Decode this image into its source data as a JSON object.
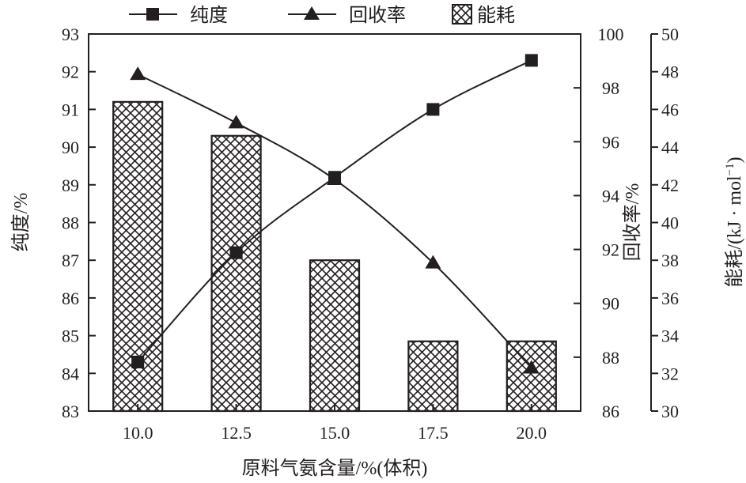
{
  "chart_data": {
    "type": "bar+line",
    "legend": {
      "placement": "top",
      "items": [
        {
          "label": "纯度",
          "marker": "square"
        },
        {
          "label": "回收率",
          "marker": "triangle"
        },
        {
          "label": "能耗",
          "marker": "crosshatch-box"
        }
      ]
    },
    "x": {
      "label": "原料气氨含量/%(体积)",
      "categories": [
        "10.0",
        "12.5",
        "15.0",
        "17.5",
        "20.0"
      ]
    },
    "axes": {
      "purity": {
        "label": "纯度/%",
        "side": "left",
        "ylim": [
          83,
          93
        ],
        "ticks": [
          "83",
          "84",
          "85",
          "86",
          "87",
          "88",
          "89",
          "90",
          "91",
          "92",
          "93"
        ]
      },
      "recovery": {
        "label": "回收率/%",
        "side": "right",
        "ylim": [
          86,
          100
        ],
        "ticks": [
          "86",
          "88",
          "90",
          "92",
          "94",
          "96",
          "98",
          "100"
        ]
      },
      "energy": {
        "label": "能耗/(kJ · mol",
        "label_sup": "−1",
        "label_close": ")",
        "side": "far-right",
        "ylim": [
          30,
          50
        ],
        "ticks": [
          "30",
          "32",
          "34",
          "36",
          "38",
          "40",
          "42",
          "44",
          "46",
          "48",
          "50"
        ]
      }
    },
    "series": [
      {
        "name": "纯度",
        "kind": "line",
        "axis": "purity",
        "marker": "square",
        "values": [
          84.3,
          87.2,
          89.2,
          91.0,
          92.3
        ]
      },
      {
        "name": "回收率",
        "kind": "line",
        "axis": "recovery",
        "marker": "triangle",
        "values": [
          98.5,
          96.7,
          94.6,
          91.5,
          87.6
        ]
      },
      {
        "name": "能耗",
        "kind": "bar",
        "axis": "energy",
        "pattern": "crosshatch",
        "values": [
          46.4,
          44.6,
          38.0,
          33.7,
          33.7
        ]
      }
    ],
    "grid": false
  }
}
